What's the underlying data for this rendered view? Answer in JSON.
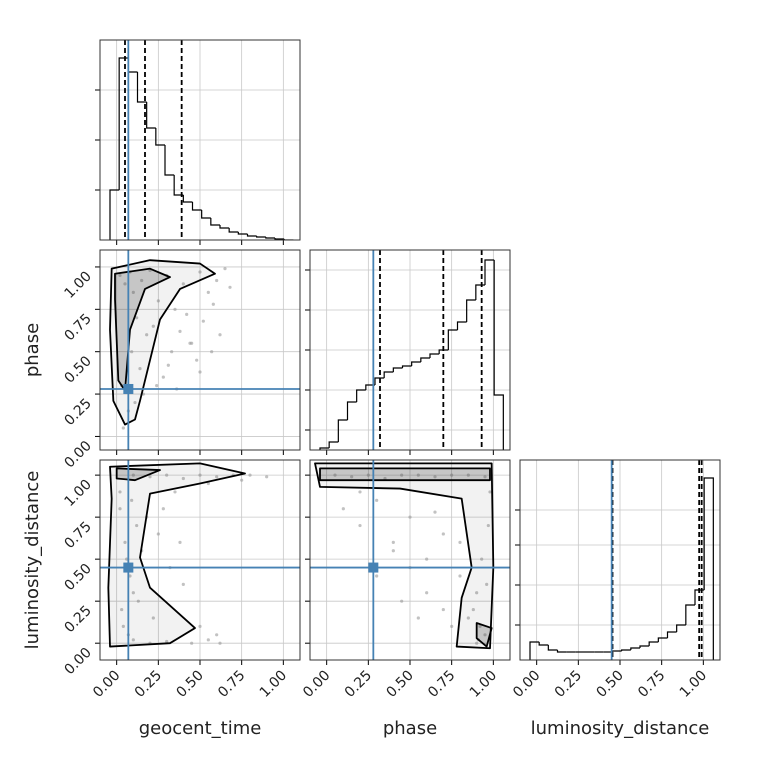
{
  "chart_data": [
    {
      "type": "histogram",
      "bins": [
        -0.04,
        0.015,
        0.07,
        0.125,
        0.18,
        0.235,
        0.29,
        0.345,
        0.4,
        0.455,
        0.51,
        0.565,
        0.62,
        0.675,
        0.73,
        0.785,
        0.84,
        0.895,
        0.95,
        1.005,
        1.06
      ],
      "counts": [
        50,
        182,
        168,
        138,
        112,
        95,
        65,
        45,
        38,
        30,
        22,
        15,
        12,
        8,
        6,
        4,
        3,
        2,
        1,
        0
      ],
      "xlim": [
        -0.1,
        1.1
      ],
      "ylim": [
        0,
        200
      ],
      "xticks": [
        0,
        0.25,
        0.5,
        0.75,
        1
      ],
      "yticks": [
        50,
        100,
        150
      ],
      "grid": true,
      "truth": 0.07,
      "quantiles": [
        0.05,
        0.17,
        0.39
      ],
      "truth_color": "#4682b4"
    },
    {
      "type": "scatter",
      "ylabel": "phase",
      "x": [
        0.02,
        0.05,
        0.08,
        0.1,
        0.12,
        0.15,
        0.18,
        0.2,
        0.25,
        0.3,
        0.35,
        0.4,
        0.45,
        0.5,
        0.55,
        0.6,
        0.65,
        0.03,
        0.07,
        0.09,
        0.14,
        0.22,
        0.28,
        0.33,
        0.38,
        0.42,
        0.48,
        0.52,
        0.58,
        0.62,
        0.04,
        0.11,
        0.16,
        0.24,
        0.31,
        0.36,
        0.44,
        0.5,
        0.57,
        0.68
      ],
      "y": [
        0.95,
        0.9,
        0.97,
        0.85,
        0.7,
        0.92,
        0.6,
        0.98,
        0.8,
        0.95,
        0.75,
        0.9,
        0.55,
        0.97,
        0.85,
        0.92,
        0.99,
        0.3,
        0.15,
        0.5,
        0.4,
        0.65,
        0.35,
        0.5,
        0.62,
        0.72,
        0.45,
        0.68,
        0.78,
        0.6,
        0.05,
        0.2,
        0.25,
        0.3,
        0.42,
        0.28,
        0.55,
        0.38,
        0.5,
        0.88
      ],
      "xlim": [
        -0.1,
        1.1
      ],
      "ylim": [
        -0.08,
        1.1
      ],
      "xticks": [
        0,
        0.25,
        0.5,
        0.75,
        1
      ],
      "yticks": [
        {
          "value": 0,
          "label": "0.00"
        },
        {
          "value": 0.25,
          "label": "0.25"
        },
        {
          "value": 0.5,
          "label": "0.50"
        },
        {
          "value": 0.75,
          "label": "0.75"
        },
        {
          "value": 1,
          "label": "1.00"
        }
      ],
      "grid": true,
      "contours": [
        {
          "x": [
            -0.03,
            0.2,
            0.5,
            0.59,
            0.38,
            0.26,
            0.2,
            0.14,
            0.11,
            0.05,
            -0.02,
            -0.04
          ],
          "y": [
            0.99,
            1.04,
            1.02,
            0.96,
            0.87,
            0.69,
            0.45,
            0.21,
            0.1,
            0.07,
            0.21,
            0.63
          ]
        },
        {
          "x": [
            -0.01,
            0.2,
            0.32,
            0.17,
            0.08,
            0.05,
            0.01,
            -0.01
          ],
          "y": [
            0.96,
            0.99,
            0.94,
            0.87,
            0.63,
            0.27,
            0.33,
            0.81
          ]
        }
      ],
      "truth_x": 0.07,
      "truth_y": 0.28,
      "truth_color": "#4682b4"
    },
    {
      "type": "histogram",
      "bins": [
        -0.04,
        0.015,
        0.07,
        0.125,
        0.18,
        0.235,
        0.29,
        0.345,
        0.4,
        0.455,
        0.51,
        0.565,
        0.62,
        0.675,
        0.73,
        0.785,
        0.84,
        0.895,
        0.95,
        1.005,
        1.06
      ],
      "counts": [
        2,
        8,
        30,
        48,
        60,
        65,
        72,
        78,
        82,
        84,
        88,
        92,
        96,
        100,
        120,
        128,
        150,
        165,
        190,
        55
      ],
      "xlim": [
        -0.1,
        1.1
      ],
      "ylim": [
        0,
        200
      ],
      "xticks": [
        0,
        0.25,
        0.5,
        0.75,
        1
      ],
      "yticks": [
        20,
        60,
        100,
        140,
        180
      ],
      "grid": true,
      "truth": 0.28,
      "quantiles": [
        0.32,
        0.7,
        0.93
      ],
      "truth_color": "#4682b4"
    },
    {
      "type": "scatter",
      "xlabel": "geocent_time",
      "ylabel": "luminosity_distance",
      "x": [
        0.1,
        0.2,
        0.3,
        0.4,
        0.5,
        0.6,
        0.7,
        0.8,
        0.9,
        0.35,
        0.55,
        0.75,
        0.02,
        0.05,
        0.08,
        0.12,
        0.03,
        0.06,
        0.1,
        0.15,
        0.04,
        0.09,
        0.18,
        0.25,
        0.32,
        0.28,
        0.22,
        0.4,
        0.5,
        0.6,
        0.1,
        0.2,
        0.3,
        0.45,
        0.55,
        0.02,
        0.07,
        0.13,
        0.38,
        0.62
      ],
      "y": [
        1.0,
        0.99,
        1.0,
        0.98,
        1.0,
        0.99,
        1.0,
        1.0,
        0.99,
        0.9,
        0.95,
        0.97,
        0.8,
        0.6,
        0.4,
        0.7,
        0.2,
        0.5,
        0.3,
        0.55,
        0.1,
        0.85,
        0.75,
        0.65,
        0.45,
        0.8,
        0.15,
        0.35,
        0.1,
        0.05,
        0.02,
        0.0,
        0.01,
        0.0,
        0.02,
        0.9,
        0.05,
        0.25,
        0.6,
        0.0
      ],
      "xlim": [
        -0.1,
        1.1
      ],
      "ylim": [
        -0.1,
        1.09
      ],
      "xticks": [
        {
          "value": 0,
          "label": "0.00"
        },
        {
          "value": 0.25,
          "label": "0.25"
        },
        {
          "value": 0.5,
          "label": "0.50"
        },
        {
          "value": 0.75,
          "label": "0.75"
        },
        {
          "value": 1,
          "label": "1.00"
        }
      ],
      "yticks": [
        {
          "value": 0,
          "label": "0.00"
        },
        {
          "value": 0.25,
          "label": "0.25"
        },
        {
          "value": 0.5,
          "label": "0.50"
        },
        {
          "value": 0.75,
          "label": "0.75"
        },
        {
          "value": 1,
          "label": "1.00"
        }
      ],
      "grid": true,
      "contours": [
        {
          "x": [
            -0.04,
            0.5,
            0.77,
            0.5,
            0.2,
            0.14,
            0.2,
            0.47,
            0.32,
            -0.04,
            -0.05,
            -0.03
          ],
          "y": [
            1.05,
            1.07,
            1.01,
            0.95,
            0.89,
            0.51,
            0.33,
            0.09,
            0.0,
            -0.02,
            0.33,
            0.86
          ]
        },
        {
          "x": [
            0.0,
            0.26,
            0.11,
            0.0
          ],
          "y": [
            1.04,
            1.03,
            0.97,
            0.98
          ]
        }
      ],
      "truth_x": 0.07,
      "truth_y": 0.45,
      "truth_color": "#4682b4"
    },
    {
      "type": "scatter",
      "xlabel": "phase",
      "x": [
        0.05,
        0.15,
        0.25,
        0.35,
        0.45,
        0.55,
        0.65,
        0.75,
        0.85,
        0.95,
        0.1,
        0.2,
        0.3,
        0.4,
        0.5,
        0.6,
        0.7,
        0.8,
        0.9,
        0.92,
        0.95,
        0.88,
        0.93,
        0.97,
        0.9,
        0.85,
        0.96,
        0.6,
        0.7,
        0.5,
        0.4,
        0.3,
        0.2,
        0.65,
        0.75,
        0.8,
        0.55,
        0.45,
        0.98,
        0.91
      ],
      "y": [
        1.0,
        0.99,
        1.0,
        0.98,
        1.0,
        1.0,
        0.99,
        1.0,
        1.0,
        0.99,
        0.8,
        0.7,
        0.85,
        0.6,
        0.75,
        0.5,
        0.65,
        0.4,
        0.3,
        0.1,
        0.05,
        0.2,
        0.5,
        0.7,
        0.0,
        0.15,
        0.35,
        0.3,
        0.2,
        0.45,
        0.55,
        0.4,
        0.9,
        0.78,
        0.1,
        0.6,
        0.15,
        0.25,
        0.9,
        0.02
      ],
      "xlim": [
        -0.1,
        1.1
      ],
      "ylim": [
        -0.1,
        1.09
      ],
      "xticks": [
        {
          "value": 0,
          "label": "0.00"
        },
        {
          "value": 0.25,
          "label": "0.25"
        },
        {
          "value": 0.5,
          "label": "0.50"
        },
        {
          "value": 0.75,
          "label": "0.75"
        },
        {
          "value": 1,
          "label": "1.00"
        }
      ],
      "yticks": [
        0,
        0.25,
        0.5,
        0.75,
        1
      ],
      "grid": true,
      "contours": [
        {
          "x": [
            -0.07,
            0.99,
            1.0,
            0.98,
            0.78,
            0.81,
            0.87,
            0.81,
            0.44,
            -0.04
          ],
          "y": [
            1.07,
            1.07,
            0.45,
            -0.03,
            -0.02,
            0.27,
            0.45,
            0.86,
            0.92,
            0.93
          ]
        },
        {
          "x": [
            -0.04,
            0.98,
            0.98,
            -0.04
          ],
          "y": [
            1.04,
            1.04,
            0.97,
            0.97
          ]
        },
        {
          "x": [
            0.9,
            0.99,
            0.96,
            0.9
          ],
          "y": [
            0.12,
            0.09,
            -0.02,
            0.03
          ]
        }
      ],
      "truth_x": 0.28,
      "truth_y": 0.45,
      "truth_color": "#4682b4"
    },
    {
      "type": "histogram",
      "xlabel": "luminosity_distance",
      "bins": [
        -0.04,
        0.015,
        0.07,
        0.125,
        0.18,
        0.235,
        0.29,
        0.345,
        0.4,
        0.455,
        0.51,
        0.565,
        0.62,
        0.675,
        0.73,
        0.785,
        0.84,
        0.895,
        0.95,
        1.005,
        1.06
      ],
      "counts": [
        18,
        15,
        10,
        8,
        8,
        8,
        8,
        8,
        8,
        9,
        10,
        12,
        14,
        18,
        22,
        28,
        35,
        55,
        70,
        182
      ],
      "xlim": [
        -0.1,
        1.1
      ],
      "ylim": [
        0,
        200
      ],
      "xticks": [
        {
          "value": 0,
          "label": "0.00"
        },
        {
          "value": 0.25,
          "label": "0.25"
        },
        {
          "value": 0.5,
          "label": "0.50"
        },
        {
          "value": 0.75,
          "label": "0.75"
        },
        {
          "value": 1,
          "label": "1.00"
        }
      ],
      "yticks": [
        35,
        75,
        115,
        150
      ],
      "grid": true,
      "truth": 0.45,
      "quantiles": [
        0.455,
        0.975,
        0.99
      ],
      "truth_color": "#4682b4"
    }
  ]
}
